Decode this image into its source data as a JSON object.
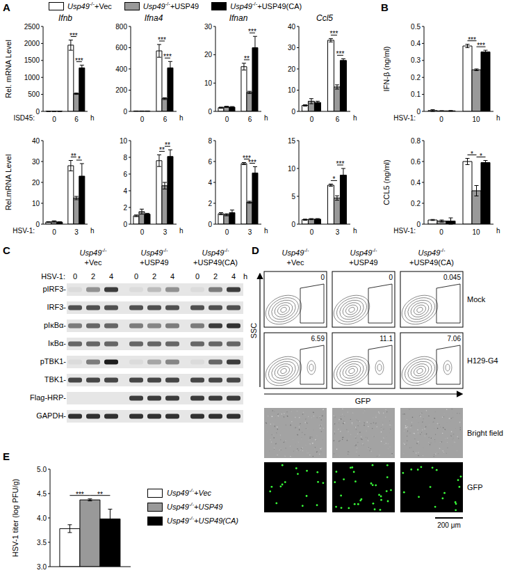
{
  "panel_labels": [
    "A",
    "B",
    "C",
    "D",
    "E"
  ],
  "chart_data": [
    {
      "type": "bar",
      "title": "Ifnb",
      "ylabel": "Rel. mRNA Level",
      "annotations": [
        "ISD45:"
      ],
      "xlabel": "h",
      "categories": [
        "0",
        "6"
      ],
      "legend": "top",
      "series": [
        {
          "name": "Usp49-/-+Vec",
          "color": "#ffffff",
          "values": [
            1,
            1950
          ],
          "errors": [
            0.5,
            150
          ]
        },
        {
          "name": "Usp49-/-+USP49",
          "color": "#999999",
          "values": [
            1,
            520
          ],
          "errors": [
            0.5,
            20
          ]
        },
        {
          "name": "Usp49-/-+USP49(CA)",
          "color": "#000000",
          "values": [
            1,
            1280
          ],
          "errors": [
            0.5,
            80
          ]
        }
      ],
      "ylim": [
        0,
        2500
      ],
      "yticks": [
        0,
        500,
        1000,
        1500,
        2000,
        2500
      ],
      "significance": [
        null,
        [
          "***",
          "***"
        ]
      ]
    },
    {
      "type": "bar",
      "title": "Ifna4",
      "xlabel": "h",
      "categories": [
        "0",
        "6"
      ],
      "series": [
        {
          "name": "Usp49-/-+Vec",
          "color": "#ffffff",
          "values": [
            3,
            570
          ],
          "errors": [
            1,
            60
          ]
        },
        {
          "name": "Usp49-/-+USP49",
          "color": "#999999",
          "values": [
            3,
            120
          ],
          "errors": [
            1,
            8
          ]
        },
        {
          "name": "Usp49-/-+USP49(CA)",
          "color": "#000000",
          "values": [
            3,
            410
          ],
          "errors": [
            1,
            60
          ]
        }
      ],
      "ylim": [
        0,
        800
      ],
      "yticks": [
        0,
        200,
        400,
        600,
        800
      ],
      "significance": [
        null,
        [
          "***",
          "***"
        ]
      ]
    },
    {
      "type": "bar",
      "title": "Ifnan",
      "xlabel": "h",
      "categories": [
        "0",
        "6"
      ],
      "series": [
        {
          "name": "Usp49-/-+Vec",
          "color": "#ffffff",
          "values": [
            1.3,
            15.8
          ],
          "errors": [
            0.2,
            1.2
          ]
        },
        {
          "name": "Usp49-/-+USP49",
          "color": "#999999",
          "values": [
            1.6,
            6.7
          ],
          "errors": [
            0.2,
            0.4
          ]
        },
        {
          "name": "Usp49-/-+USP49(CA)",
          "color": "#000000",
          "values": [
            1.5,
            22.5
          ],
          "errors": [
            0.2,
            4
          ]
        }
      ],
      "ylim": [
        0,
        30
      ],
      "yticks": [
        0,
        10,
        20,
        30
      ],
      "significance": [
        null,
        [
          "**",
          "***"
        ]
      ]
    },
    {
      "type": "bar",
      "title": "Ccl5",
      "xlabel": "h",
      "categories": [
        "0",
        "6"
      ],
      "series": [
        {
          "name": "Usp49-/-+Vec",
          "color": "#ffffff",
          "values": [
            2.8,
            33.5
          ],
          "errors": [
            0.3,
            0.8
          ]
        },
        {
          "name": "Usp49-/-+USP49",
          "color": "#999999",
          "values": [
            4.8,
            11.5
          ],
          "errors": [
            1.2,
            1
          ]
        },
        {
          "name": "Usp49-/-+USP49(CA)",
          "color": "#000000",
          "values": [
            4.2,
            24
          ],
          "errors": [
            0.6,
            0.8
          ]
        }
      ],
      "ylim": [
        0,
        40
      ],
      "yticks": [
        0,
        10,
        20,
        30,
        40
      ],
      "significance": [
        null,
        [
          "***",
          "***"
        ]
      ]
    },
    {
      "type": "bar",
      "ylabel": "Rel.mRNA Level",
      "annotations": [
        "HSV-1:"
      ],
      "xlabel": "h",
      "categories": [
        "0",
        "3"
      ],
      "series": [
        {
          "name": "Usp49-/-+Vec",
          "color": "#ffffff",
          "values": [
            1,
            28
          ],
          "errors": [
            0.2,
            2.5
          ]
        },
        {
          "name": "Usp49-/-+USP49",
          "color": "#999999",
          "values": [
            1.3,
            12.5
          ],
          "errors": [
            0.3,
            0.8
          ]
        },
        {
          "name": "Usp49-/-+USP49(CA)",
          "color": "#000000",
          "values": [
            1,
            23
          ],
          "errors": [
            0.2,
            6
          ]
        }
      ],
      "ylim": [
        0,
        40
      ],
      "yticks": [
        0,
        10,
        20,
        30,
        40
      ],
      "significance": [
        null,
        [
          "**",
          "*"
        ]
      ]
    },
    {
      "type": "bar",
      "xlabel": "h",
      "categories": [
        "0",
        "3"
      ],
      "series": [
        {
          "name": "Usp49-/-+Vec",
          "color": "#ffffff",
          "values": [
            1,
            7.6
          ],
          "errors": [
            0.1,
            0.7
          ]
        },
        {
          "name": "Usp49-/-+USP49",
          "color": "#999999",
          "values": [
            1.5,
            4.6
          ],
          "errors": [
            0.3,
            0.4
          ]
        },
        {
          "name": "Usp49-/-+USP49(CA)",
          "color": "#000000",
          "values": [
            1.2,
            8.1
          ],
          "errors": [
            0.1,
            0.8
          ]
        }
      ],
      "ylim": [
        0,
        10
      ],
      "yticks": [
        0,
        2,
        4,
        6,
        8,
        10
      ],
      "significance": [
        null,
        [
          "**",
          "**"
        ]
      ]
    },
    {
      "type": "bar",
      "xlabel": "h",
      "categories": [
        "0",
        "3"
      ],
      "series": [
        {
          "name": "Usp49-/-+Vec",
          "color": "#ffffff",
          "values": [
            1,
            5.8
          ],
          "errors": [
            0.1,
            0.1
          ]
        },
        {
          "name": "Usp49-/-+USP49",
          "color": "#999999",
          "values": [
            0.9,
            2.1
          ],
          "errors": [
            0.1,
            0.1
          ]
        },
        {
          "name": "Usp49-/-+USP49(CA)",
          "color": "#000000",
          "values": [
            1.1,
            4.9
          ],
          "errors": [
            0.25,
            0.6
          ]
        }
      ],
      "ylim": [
        0,
        8
      ],
      "yticks": [
        0,
        2,
        4,
        6,
        8
      ],
      "significance": [
        null,
        [
          "***",
          "***"
        ]
      ]
    },
    {
      "type": "bar",
      "xlabel": "h",
      "categories": [
        "0",
        "3"
      ],
      "series": [
        {
          "name": "Usp49-/-+Vec",
          "color": "#ffffff",
          "values": [
            0.8,
            7
          ],
          "errors": [
            0.1,
            0.2
          ]
        },
        {
          "name": "Usp49-/-+USP49",
          "color": "#999999",
          "values": [
            0.9,
            4.7
          ],
          "errors": [
            0.1,
            0.4
          ]
        },
        {
          "name": "Usp49-/-+USP49(CA)",
          "color": "#000000",
          "values": [
            0.9,
            8.8
          ],
          "errors": [
            0.1,
            1.2
          ]
        }
      ],
      "ylim": [
        0,
        15
      ],
      "yticks": [
        0,
        5,
        10,
        15
      ],
      "significance": [
        null,
        [
          "*",
          "***"
        ]
      ]
    },
    {
      "type": "bar",
      "ylabel": "IFN-β (ng/ml)",
      "annotations": [
        "HSV-1:"
      ],
      "xlabel": "h",
      "categories": [
        "0",
        "10"
      ],
      "series": [
        {
          "name": "Usp49-/-+Vec",
          "color": "#ffffff",
          "values": [
            0.005,
            0.385
          ],
          "errors": [
            0.005,
            0.01
          ]
        },
        {
          "name": "Usp49-/-+USP49",
          "color": "#999999",
          "values": [
            0.003,
            0.245
          ],
          "errors": [
            0.001,
            0.005
          ]
        },
        {
          "name": "Usp49-/-+USP49(CA)",
          "color": "#000000",
          "values": [
            0.003,
            0.35
          ],
          "errors": [
            0.002,
            0.01
          ]
        }
      ],
      "ylim": [
        0,
        0.5
      ],
      "yticks": [
        0,
        0.1,
        0.2,
        0.3,
        0.4,
        0.5
      ],
      "significance": [
        null,
        [
          "***",
          "***"
        ]
      ]
    },
    {
      "type": "bar",
      "ylabel": "CCL5 (ng/ml)",
      "annotations": [
        "HSV-1:"
      ],
      "xlabel": "h",
      "categories": [
        "0",
        "10"
      ],
      "series": [
        {
          "name": "Usp49-/-+Vec",
          "color": "#ffffff",
          "values": [
            0.04,
            0.6
          ],
          "errors": [
            0.005,
            0.03
          ]
        },
        {
          "name": "Usp49-/-+USP49",
          "color": "#999999",
          "values": [
            0.03,
            0.32
          ],
          "errors": [
            0.01,
            0.05
          ]
        },
        {
          "name": "Usp49-/-+USP49(CA)",
          "color": "#000000",
          "values": [
            0.03,
            0.59
          ],
          "errors": [
            0.03,
            0.02
          ]
        }
      ],
      "ylim": [
        0,
        0.8
      ],
      "yticks": [
        0,
        0.2,
        0.4,
        0.6,
        0.8
      ],
      "significance": [
        null,
        [
          "*",
          "*"
        ]
      ]
    },
    {
      "type": "bar",
      "ylabel": "HSV-1 titer (log PFU/g)",
      "categories": [
        null
      ],
      "legend": "right",
      "series": [
        {
          "name": "Usp49-/-+Vec",
          "color": "#ffffff",
          "values": [
            3.78
          ],
          "errors": [
            0.08
          ]
        },
        {
          "name": "Usp49-/-+USP49",
          "color": "#999999",
          "values": [
            4.37
          ],
          "errors": [
            0.02
          ]
        },
        {
          "name": "Usp49-/-+USP49(CA)",
          "color": "#000000",
          "values": [
            3.98
          ],
          "errors": [
            0.2
          ]
        }
      ],
      "ylim": [
        3,
        5
      ],
      "yticks": [
        {
          "value": 3,
          "label": "3.0"
        },
        3.5,
        {
          "value": 4,
          "label": "4.0"
        },
        4.5,
        {
          "value": 5,
          "label": "5.0"
        }
      ],
      "significance": [
        [
          "***",
          "**"
        ]
      ]
    }
  ],
  "blot": {
    "groups": [
      "Usp49-/-+Vec",
      "Usp49-/-+USP49",
      "Usp49-/-+USP49(CA)"
    ],
    "time_label": "HSV-1:",
    "times": [
      "0",
      "2",
      "4"
    ],
    "time_unit": "h",
    "rows": [
      {
        "label": "pIRF3-",
        "bands": [
          0.05,
          0.4,
          0.8,
          0.05,
          0.2,
          0.4,
          0.05,
          0.5,
          0.8
        ]
      },
      {
        "label": "IRF3-",
        "bands": [
          0.7,
          0.7,
          0.7,
          0.7,
          0.7,
          0.7,
          0.7,
          0.7,
          0.7
        ]
      },
      {
        "label": "pIκBα-",
        "bands": [
          0.5,
          0.6,
          0.6,
          0.5,
          0.45,
          0.5,
          0.5,
          0.8,
          0.85
        ]
      },
      {
        "label": "IκBα-",
        "bands": [
          0.6,
          0.6,
          0.6,
          0.6,
          0.6,
          0.6,
          0.6,
          0.6,
          0.6
        ]
      },
      {
        "label": "pTBK1-",
        "bands": [
          0.05,
          0.5,
          0.95,
          0.05,
          0.3,
          0.45,
          0.05,
          0.6,
          0.8
        ]
      },
      {
        "label": "TBK1-",
        "bands": [
          0.75,
          0.75,
          0.75,
          0.75,
          0.75,
          0.75,
          0.75,
          0.75,
          0.75
        ]
      },
      {
        "label": "Flag-HRP-",
        "bands": [
          0,
          0,
          0,
          0.8,
          0.8,
          0.8,
          0.8,
          0.8,
          0.8
        ]
      },
      {
        "label": "GAPDH-",
        "bands": [
          0.85,
          0.85,
          0.85,
          0.85,
          0.85,
          0.85,
          0.85,
          0.85,
          0.85
        ]
      }
    ]
  },
  "flow": {
    "columns": [
      "Usp49-/-+Vec",
      "Usp49-/-+USP49",
      "Usp49-/-+USP49(CA)"
    ],
    "rows": [
      {
        "label": "Mock",
        "gates": [
          0,
          0,
          0.045
        ]
      },
      {
        "label": "H129-G4",
        "gates": [
          6.59,
          11.1,
          7.06
        ]
      }
    ],
    "xlabel": "GFP",
    "ylabel": "SSC",
    "images": [
      "Bright field",
      "GFP"
    ],
    "scale_bar": "200 μm"
  }
}
